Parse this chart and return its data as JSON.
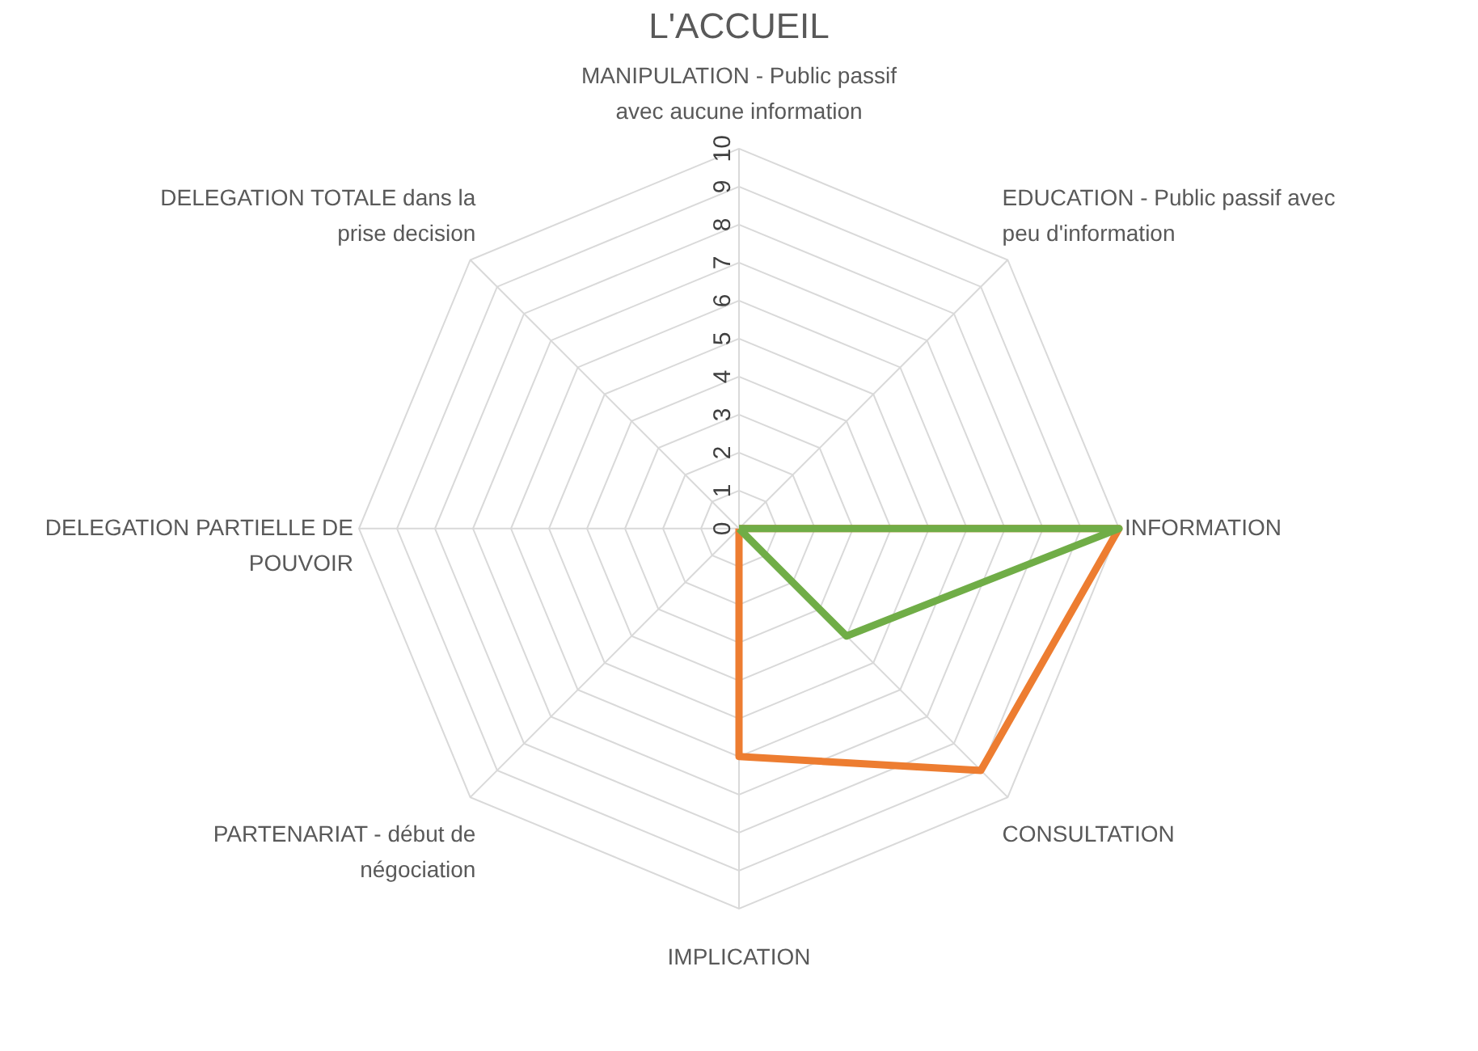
{
  "chart_data": {
    "type": "radar",
    "title": "L'ACCUEIL",
    "categories": [
      "MANIPULATION - Public passif avec aucune information",
      "EDUCATION - Public passif avec peu d'information",
      "INFORMATION",
      "CONSULTATION",
      "IMPLICATION",
      "PARTENARIAT - début de négociation",
      "DELEGATION PARTIELLE DE POUVOIR",
      "DELEGATION TOTALE dans la prise decision"
    ],
    "series": [
      {
        "color": "#ed7d31",
        "values": [
          0,
          0,
          10,
          9,
          6,
          0,
          0,
          0
        ]
      },
      {
        "color": "#70ad47",
        "values": [
          0,
          0,
          10,
          4,
          0,
          0,
          0,
          0
        ]
      }
    ],
    "ylim": [
      0,
      10
    ],
    "yticks": [
      0,
      1,
      2,
      3,
      4,
      5,
      6,
      7,
      8,
      9,
      10
    ],
    "grid": true,
    "marker": "none",
    "line_style": "solid"
  }
}
